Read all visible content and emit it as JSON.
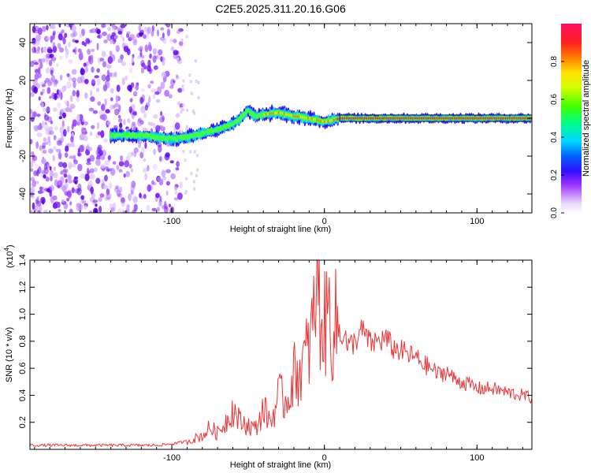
{
  "title": "C2E5.2025.311.20.16.G06",
  "chart_data": [
    {
      "type": "heatmap",
      "title": "C2E5.2025.311.20.16.G06",
      "xlabel": "Height of straight line (km)",
      "ylabel": "Frequency (Hz)",
      "xlim": [
        -193,
        136
      ],
      "ylim": [
        -50,
        50
      ],
      "x_ticks": [
        -100,
        0,
        100
      ],
      "y_ticks": [
        -40,
        -20,
        0,
        20,
        40
      ],
      "colorbar": {
        "label": "Normalized spectral amplitude",
        "range": [
          0,
          1
        ],
        "ticks": [
          0.0,
          0.2,
          0.4,
          0.6,
          0.8
        ]
      },
      "ridge": {
        "name": "dominant frequency trace",
        "x": [
          -140,
          -130,
          -120,
          -110,
          -100,
          -90,
          -80,
          -70,
          -60,
          -55,
          -50,
          -45,
          -40,
          -30,
          -20,
          -10,
          0,
          5,
          10,
          20,
          40,
          60,
          80,
          100,
          136
        ],
        "y": [
          -9,
          -9,
          -9,
          -10,
          -11,
          -10,
          -8,
          -6,
          -3,
          0,
          4,
          1,
          2,
          3,
          1,
          0,
          -2,
          -1,
          0,
          0,
          0,
          0,
          0,
          0,
          0
        ]
      }
    },
    {
      "type": "line",
      "xlabel": "Height of straight line (km)",
      "ylabel": "SNR (10 * v/v)",
      "y_multiplier_label": "(x10",
      "y_multiplier_exp": "4",
      "xlim": [
        -193,
        136
      ],
      "ylim": [
        0,
        1.4
      ],
      "x_ticks": [
        -100,
        0,
        100
      ],
      "y_ticks": [
        0.2,
        0.4,
        0.6,
        0.8,
        1.0,
        1.2,
        1.4
      ],
      "series": [
        {
          "name": "SNR",
          "color": "#ee3333",
          "x": [
            -193,
            -170,
            -150,
            -130,
            -110,
            -100,
            -90,
            -80,
            -75,
            -70,
            -65,
            -60,
            -55,
            -50,
            -45,
            -40,
            -35,
            -30,
            -25,
            -20,
            -15,
            -10,
            -7,
            -5,
            -3,
            0,
            3,
            5,
            8,
            10,
            13,
            15,
            20,
            25,
            30,
            35,
            40,
            45,
            50,
            55,
            60,
            65,
            70,
            75,
            80,
            85,
            90,
            95,
            100,
            110,
            120,
            130,
            136
          ],
          "y": [
            0.03,
            0.03,
            0.03,
            0.03,
            0.03,
            0.04,
            0.06,
            0.1,
            0.16,
            0.12,
            0.2,
            0.3,
            0.2,
            0.18,
            0.15,
            0.3,
            0.2,
            0.4,
            0.35,
            0.55,
            0.6,
            0.75,
            0.95,
            1.3,
            1.0,
            0.9,
            1.05,
            0.85,
            0.95,
            0.8,
            0.9,
            0.75,
            0.8,
            0.88,
            0.78,
            0.8,
            0.82,
            0.75,
            0.73,
            0.7,
            0.68,
            0.63,
            0.6,
            0.55,
            0.58,
            0.52,
            0.5,
            0.48,
            0.45,
            0.45,
            0.42,
            0.4,
            0.38
          ]
        }
      ]
    }
  ]
}
